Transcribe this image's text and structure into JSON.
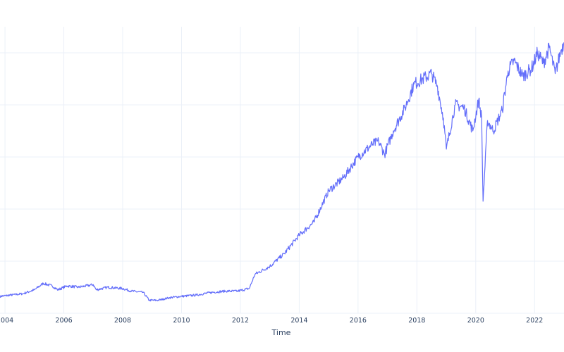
{
  "chart_data": {
    "type": "line",
    "xlabel": "Time",
    "ylabel": "",
    "x_ticks": [
      "2004",
      "2006",
      "2008",
      "2010",
      "2012",
      "2014",
      "2016",
      "2018",
      "2020",
      "2022"
    ],
    "xlim": [
      2003.83,
      2023.0
    ],
    "ylim": [
      0,
      110
    ],
    "y_gridlines": [
      20,
      40,
      60,
      80,
      100
    ],
    "grid": true,
    "series": [
      {
        "color": "#636efa",
        "x": [
          2003.83,
          2004.2,
          2004.6,
          2005.0,
          2005.3,
          2005.6,
          2005.8,
          2006.1,
          2006.5,
          2007.0,
          2007.1,
          2007.5,
          2008.0,
          2008.3,
          2008.7,
          2008.9,
          2009.2,
          2009.6,
          2010.0,
          2010.5,
          2011.0,
          2011.5,
          2011.9,
          2012.3,
          2012.5,
          2013.0,
          2013.5,
          2014.0,
          2014.5,
          2015.0,
          2015.5,
          2016.0,
          2016.5,
          2016.7,
          2016.9,
          2017.2,
          2017.6,
          2017.9,
          2018.2,
          2018.5,
          2018.7,
          2018.9,
          2019.0,
          2019.3,
          2019.6,
          2019.9,
          2020.1,
          2020.2,
          2020.25,
          2020.4,
          2020.6,
          2020.9,
          2021.1,
          2021.3,
          2021.6,
          2021.9,
          2022.1,
          2022.3,
          2022.5,
          2022.7,
          2022.9,
          2023.0
        ],
        "y": [
          6.5,
          7.0,
          7.5,
          9.0,
          11.5,
          10.5,
          9.0,
          10.5,
          10.0,
          11.0,
          9.0,
          10.0,
          9.5,
          8.5,
          8.0,
          5.0,
          5.0,
          6.0,
          6.5,
          7.0,
          8.0,
          8.5,
          8.5,
          9.5,
          15.0,
          18.0,
          23.0,
          30.0,
          35.0,
          47.0,
          52.0,
          60.0,
          65.0,
          66.0,
          61.0,
          70.0,
          79.0,
          88.0,
          90.0,
          92.0,
          87.0,
          75.0,
          63.0,
          80.0,
          79.0,
          70.0,
          82.0,
          75.0,
          43.0,
          74.0,
          70.0,
          78.0,
          93.0,
          97.0,
          91.0,
          94.0,
          100.0,
          96.0,
          102.0,
          92.0,
          101.0,
          104.0
        ]
      }
    ]
  }
}
